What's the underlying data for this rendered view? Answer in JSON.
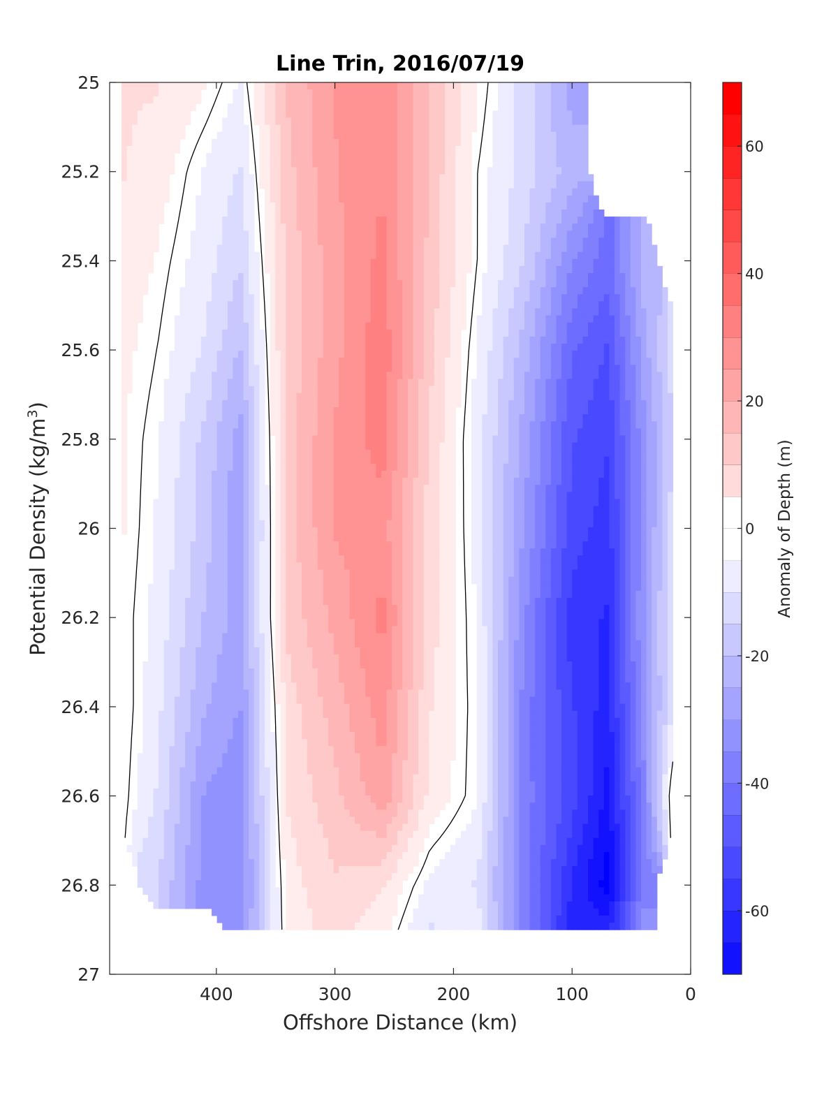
{
  "chart_data": {
    "type": "heatmap",
    "subtype": "filled-contour",
    "title": "Line Trin, 2016/07/19",
    "xlabel": "Offshore Distance (km)",
    "ylabel_prefix": "Potential Density (kg/m",
    "ylabel_exponent": "3",
    "ylabel_suffix": ")",
    "colorbar_label": "Anomaly of Depth (m)",
    "xlim": [
      490,
      0
    ],
    "x_reversed": true,
    "ylim": [
      25,
      27
    ],
    "y_reversed": true,
    "x_ticks": [
      "400",
      "300",
      "200",
      "100",
      "0"
    ],
    "x_tick_values": [
      400,
      300,
      200,
      100,
      0
    ],
    "y_ticks": [
      "25",
      "25.2",
      "25.4",
      "25.6",
      "25.8",
      "26",
      "26.2",
      "26.4",
      "26.6",
      "26.8",
      "27"
    ],
    "y_tick_values": [
      25,
      25.2,
      25.4,
      25.6,
      25.8,
      26,
      26.2,
      26.4,
      26.6,
      26.8,
      27
    ],
    "colorbar_range": [
      -70,
      70
    ],
    "colorbar_step": 5,
    "colorbar_ticks": [
      "-60",
      "-40",
      "-20",
      "0",
      "20",
      "40",
      "60"
    ],
    "colorbar_tick_values": [
      -60,
      -40,
      -20,
      0,
      20,
      40,
      60
    ],
    "colormap": {
      "negative": "#0000ff",
      "zero": "#ffffff",
      "positive": "#ff0000"
    },
    "contour_lines": [
      0
    ],
    "grid": false,
    "x": [
      480,
      450,
      410,
      380,
      340,
      300,
      260,
      220,
      180,
      140,
      100,
      70,
      40,
      15
    ],
    "y": [
      25.0,
      25.2,
      25.4,
      25.6,
      25.8,
      26.0,
      26.2,
      26.4,
      26.6,
      26.8,
      26.9
    ],
    "z": [
      [
        8,
        8,
        3,
        -3,
        18,
        28,
        32,
        18,
        3,
        -10,
        -25,
        null,
        null,
        null
      ],
      [
        8,
        5,
        -3,
        -8,
        16,
        27,
        32,
        17,
        0,
        -10,
        -20,
        null,
        null,
        null
      ],
      [
        6,
        2,
        -5,
        -12,
        14,
        26,
        34,
        16,
        0,
        -13,
        -32,
        -40,
        -20,
        null
      ],
      [
        4,
        0,
        -8,
        -18,
        14,
        26,
        36,
        14,
        -3,
        -20,
        -42,
        -48,
        -25,
        -10
      ],
      [
        3,
        -2,
        -14,
        -25,
        15,
        28,
        35,
        12,
        -5,
        -25,
        -47,
        -52,
        -30,
        -12
      ],
      [
        3,
        -3,
        -15,
        -27,
        15,
        28,
        30,
        10,
        -4,
        -28,
        -50,
        -55,
        -30,
        -10
      ],
      [
        2,
        -4,
        -18,
        -25,
        14,
        24,
        34,
        10,
        -3,
        -32,
        -55,
        -58,
        -28,
        -8
      ],
      [
        3,
        -6,
        -22,
        -28,
        10,
        20,
        30,
        8,
        -2,
        -35,
        -52,
        -60,
        -30,
        -8
      ],
      [
        2,
        -8,
        -28,
        -30,
        8,
        16,
        26,
        6,
        -2,
        -35,
        -50,
        -64,
        -35,
        5
      ],
      [
        null,
        -12,
        -30,
        -32,
        5,
        12,
        8,
        -4,
        -8,
        -35,
        -58,
        -70,
        -35,
        null
      ],
      [
        null,
        null,
        null,
        -30,
        4,
        10,
        4,
        -8,
        -5,
        -35,
        -60,
        -60,
        -30,
        null
      ]
    ]
  }
}
